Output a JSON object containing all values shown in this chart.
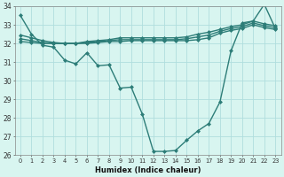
{
  "xlabel": "Humidex (Indice chaleur)",
  "x": [
    0,
    1,
    2,
    3,
    4,
    5,
    6,
    7,
    8,
    9,
    10,
    11,
    12,
    13,
    14,
    15,
    16,
    17,
    18,
    19,
    20,
    21,
    22,
    23
  ],
  "line1": [
    33.5,
    32.5,
    31.9,
    31.8,
    31.1,
    30.9,
    31.5,
    30.8,
    30.85,
    29.6,
    29.65,
    28.2,
    26.2,
    26.2,
    26.25,
    26.8,
    27.3,
    27.7,
    28.85,
    31.6,
    33.1,
    33.2,
    34.1,
    32.8
  ],
  "line2": [
    32.1,
    32.05,
    32.0,
    32.0,
    32.0,
    32.0,
    32.0,
    32.05,
    32.1,
    32.1,
    32.15,
    32.15,
    32.15,
    32.15,
    32.15,
    32.15,
    32.2,
    32.3,
    32.55,
    32.7,
    32.8,
    33.0,
    32.85,
    32.75
  ],
  "line3": [
    32.25,
    32.15,
    32.05,
    32.0,
    32.0,
    32.0,
    32.05,
    32.1,
    32.15,
    32.2,
    32.2,
    32.2,
    32.2,
    32.2,
    32.2,
    32.25,
    32.35,
    32.45,
    32.65,
    32.8,
    32.9,
    33.1,
    32.95,
    32.85
  ],
  "line4": [
    32.45,
    32.3,
    32.15,
    32.05,
    32.0,
    32.0,
    32.1,
    32.15,
    32.2,
    32.3,
    32.3,
    32.3,
    32.3,
    32.3,
    32.3,
    32.35,
    32.5,
    32.6,
    32.75,
    32.9,
    33.0,
    33.2,
    33.05,
    32.95
  ],
  "line_color": "#2d7d78",
  "bg_color": "#d8f5f0",
  "grid_color": "#b0dede",
  "ylim": [
    26,
    34
  ],
  "yticks": [
    26,
    27,
    28,
    29,
    30,
    31,
    32,
    33,
    34
  ],
  "xticks": [
    0,
    1,
    2,
    3,
    4,
    5,
    6,
    7,
    8,
    9,
    10,
    11,
    12,
    13,
    14,
    15,
    16,
    17,
    18,
    19,
    20,
    21,
    22,
    23
  ],
  "marker": "D",
  "markersize": 2.0,
  "linewidth": 1.0
}
